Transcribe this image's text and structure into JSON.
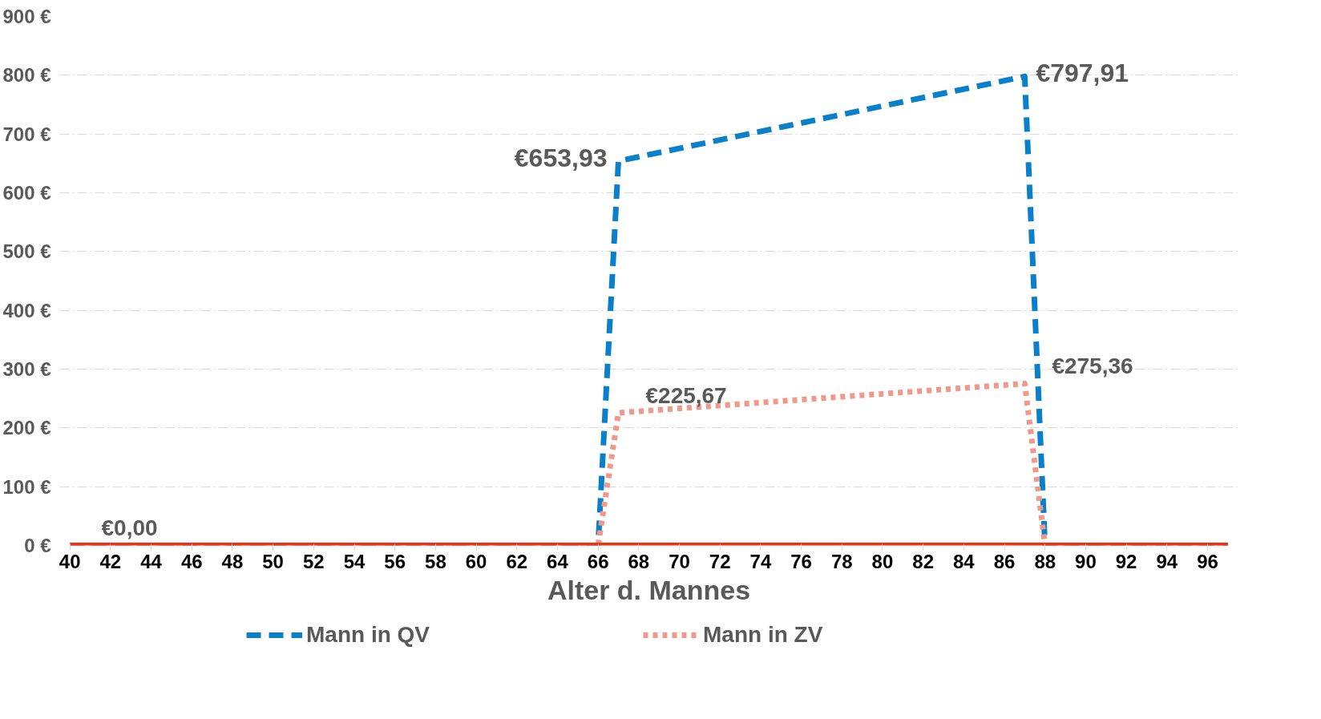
{
  "chart_data": {
    "type": "line",
    "xlabel": "Alter d. Mannes",
    "xlim": [
      39.5,
      97.5
    ],
    "xticks": [
      40,
      42,
      44,
      46,
      48,
      50,
      52,
      54,
      56,
      58,
      60,
      62,
      64,
      66,
      68,
      70,
      72,
      74,
      76,
      78,
      80,
      82,
      84,
      86,
      88,
      90,
      92,
      94,
      96
    ],
    "ylim": [
      0,
      900
    ],
    "yticks": [
      {
        "value": 0,
        "label": "0 €"
      },
      {
        "value": 100,
        "label": "100 €"
      },
      {
        "value": 200,
        "label": "200 €"
      },
      {
        "value": 300,
        "label": "300 €"
      },
      {
        "value": 400,
        "label": "400 €"
      },
      {
        "value": 500,
        "label": "500 €"
      },
      {
        "value": 600,
        "label": "600 €"
      },
      {
        "value": 700,
        "label": "700 €"
      },
      {
        "value": 800,
        "label": "800 €"
      },
      {
        "value": 900,
        "label": "900 €"
      }
    ],
    "grid": "y",
    "legend": "bottom",
    "marker": "none",
    "series": [
      {
        "name": "Mann in QV",
        "color": "#0a7fca",
        "line_style": "dashed",
        "x": [
          40,
          66,
          67,
          87,
          88,
          97
        ],
        "values": [
          0,
          0,
          653.93,
          797.91,
          0,
          0
        ],
        "value_labels": [
          null,
          null,
          "€653,93",
          "€797,91",
          null,
          null
        ]
      },
      {
        "name": "Mann in ZV",
        "color": "#f0998a",
        "line_style": "dotted",
        "x": [
          40,
          66,
          67,
          87,
          88,
          97
        ],
        "values": [
          0,
          0,
          225.67,
          275.36,
          0,
          0
        ],
        "value_labels": [
          null,
          null,
          "€225,67",
          "€275,36",
          null,
          null
        ]
      },
      {
        "color": "#ff2a0a",
        "line_style": "solid",
        "x": [
          40,
          41,
          66,
          67,
          87,
          88,
          97
        ],
        "values": [
          0,
          0,
          0,
          0,
          0,
          0,
          0
        ],
        "value_labels": [
          null,
          "€0,00",
          null,
          null,
          null,
          null,
          null
        ]
      }
    ]
  }
}
